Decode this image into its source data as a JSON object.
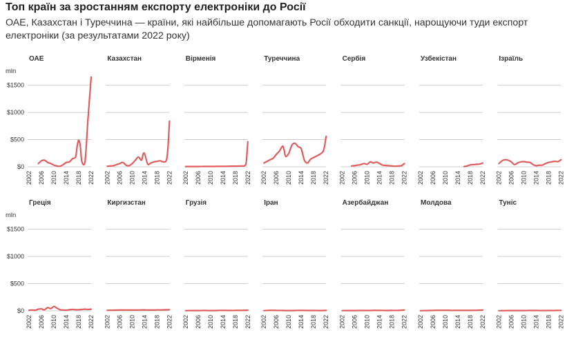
{
  "title": "Топ країн за зростанням експорту електроніки до Росії",
  "subtitle": "ОАЕ, Казахстан і Туреччина — країни, які найбільше допомагають Росії обходити санкції, нарощуючи туди експорт електроніки (за результатами 2022 року)",
  "series_color": "#e05c5c",
  "chart_data": {
    "type": "line",
    "unit_label": "mln",
    "y_ticks": [
      "$0",
      "$500",
      "$1000",
      "$1500"
    ],
    "y_tick_values": [
      0,
      500,
      1000,
      1500
    ],
    "ylim": [
      0,
      1800
    ],
    "x_ticks": [
      "2002",
      "2006",
      "2010",
      "2014",
      "2018",
      "2022"
    ],
    "x_tick_values": [
      2002,
      2006,
      2010,
      2014,
      2018,
      2022
    ],
    "xlim": [
      2002,
      2022
    ],
    "panels": [
      {
        "name": "ОАЕ",
        "x": [
          2005,
          2006,
          2007,
          2008,
          2009,
          2010,
          2011,
          2012,
          2013,
          2014,
          2015,
          2016,
          2017,
          2017.5,
          2018,
          2018.5,
          2019,
          2020,
          2021,
          2022
        ],
        "y": [
          60,
          110,
          120,
          80,
          60,
          30,
          15,
          10,
          40,
          80,
          90,
          150,
          180,
          380,
          490,
          380,
          100,
          80,
          900,
          1650
        ]
      },
      {
        "name": "Казахстан",
        "x": [
          2002,
          2003,
          2004,
          2005,
          2006,
          2007,
          2008,
          2009,
          2010,
          2011,
          2012,
          2013,
          2013.5,
          2014,
          2015,
          2016,
          2017,
          2018,
          2019,
          2020,
          2021,
          2021.5,
          2022
        ],
        "y": [
          10,
          15,
          20,
          40,
          60,
          80,
          30,
          20,
          60,
          120,
          180,
          120,
          230,
          240,
          50,
          70,
          90,
          100,
          110,
          90,
          120,
          350,
          840
        ]
      },
      {
        "name": "Вірменія",
        "x": [
          2002,
          2004,
          2006,
          2008,
          2010,
          2012,
          2014,
          2016,
          2018,
          2020,
          2021,
          2021.5,
          2022
        ],
        "y": [
          5,
          5,
          5,
          6,
          6,
          7,
          8,
          10,
          12,
          14,
          20,
          90,
          460
        ]
      },
      {
        "name": "Туреччина",
        "x": [
          2002,
          2003,
          2004,
          2005,
          2006,
          2007,
          2008,
          2008.5,
          2009,
          2010,
          2011,
          2012,
          2013,
          2014,
          2015,
          2016,
          2017,
          2018,
          2019,
          2020,
          2021,
          2021.5,
          2022
        ],
        "y": [
          70,
          100,
          130,
          160,
          230,
          290,
          380,
          300,
          190,
          250,
          400,
          430,
          370,
          330,
          120,
          70,
          140,
          170,
          200,
          230,
          280,
          380,
          560
        ]
      },
      {
        "name": "Сербія",
        "x": [
          2005,
          2006,
          2007,
          2008,
          2009,
          2010,
          2011,
          2012,
          2013,
          2014,
          2015,
          2016,
          2017,
          2018,
          2019,
          2020,
          2021,
          2022
        ],
        "y": [
          15,
          20,
          30,
          40,
          60,
          45,
          90,
          70,
          85,
          60,
          30,
          25,
          20,
          15,
          10,
          15,
          20,
          60
        ]
      },
      {
        "name": "Узбекістан",
        "x": [
          2016,
          2017,
          2018,
          2019,
          2020,
          2021,
          2022
        ],
        "y": [
          5,
          15,
          35,
          40,
          45,
          50,
          70
        ]
      },
      {
        "name": "Ізраїль",
        "x": [
          2002,
          2003,
          2004,
          2005,
          2006,
          2007,
          2008,
          2009,
          2010,
          2011,
          2012,
          2013,
          2014,
          2015,
          2016,
          2017,
          2018,
          2019,
          2020,
          2021,
          2022
        ],
        "y": [
          60,
          110,
          130,
          120,
          90,
          40,
          70,
          90,
          95,
          85,
          80,
          40,
          20,
          30,
          30,
          60,
          80,
          90,
          100,
          95,
          130
        ]
      },
      {
        "name": "Греція",
        "x": [
          2002,
          2003,
          2004,
          2005,
          2006,
          2007,
          2008,
          2009,
          2010,
          2011,
          2012,
          2013,
          2014,
          2015,
          2016,
          2017,
          2018,
          2019,
          2020,
          2021,
          2022
        ],
        "y": [
          10,
          15,
          10,
          30,
          35,
          20,
          60,
          40,
          80,
          50,
          20,
          15,
          10,
          20,
          25,
          20,
          20,
          25,
          30,
          25,
          30
        ]
      },
      {
        "name": "Киргизстан",
        "x": [
          2002,
          2004,
          2006,
          2008,
          2010,
          2012,
          2014,
          2016,
          2018,
          2020,
          2022
        ],
        "y": [
          10,
          12,
          14,
          15,
          14,
          15,
          16,
          14,
          16,
          18,
          22
        ]
      },
      {
        "name": "Грузія",
        "x": [
          2002,
          2004,
          2006,
          2008,
          2010,
          2012,
          2014,
          2016,
          2018,
          2020,
          2022
        ],
        "y": [
          4,
          5,
          5,
          6,
          5,
          6,
          7,
          6,
          8,
          8,
          12
        ]
      },
      {
        "name": "Іран",
        "x": [
          2002,
          2004,
          2006,
          2008,
          2010,
          2012,
          2014,
          2016,
          2018,
          2020,
          2022
        ],
        "y": [
          4,
          10,
          8,
          6,
          5,
          6,
          7,
          6,
          6,
          5,
          8
        ]
      },
      {
        "name": "Азербайджан",
        "x": [
          2002,
          2004,
          2006,
          2008,
          2010,
          2012,
          2014,
          2016,
          2018,
          2020,
          2022
        ],
        "y": [
          4,
          5,
          5,
          6,
          6,
          7,
          8,
          6,
          7,
          8,
          15
        ]
      },
      {
        "name": "Молдова",
        "x": [
          2002,
          2004,
          2006,
          2008,
          2010,
          2012,
          2014,
          2016,
          2018,
          2020,
          2022
        ],
        "y": [
          3,
          5,
          8,
          10,
          10,
          9,
          8,
          7,
          8,
          10,
          14
        ]
      },
      {
        "name": "Туніс",
        "x": [
          2002,
          2004,
          2006,
          2008,
          2010,
          2012,
          2014,
          2016,
          2018,
          2020,
          2022
        ],
        "y": [
          3,
          4,
          5,
          5,
          5,
          6,
          6,
          5,
          6,
          6,
          8
        ]
      }
    ]
  }
}
